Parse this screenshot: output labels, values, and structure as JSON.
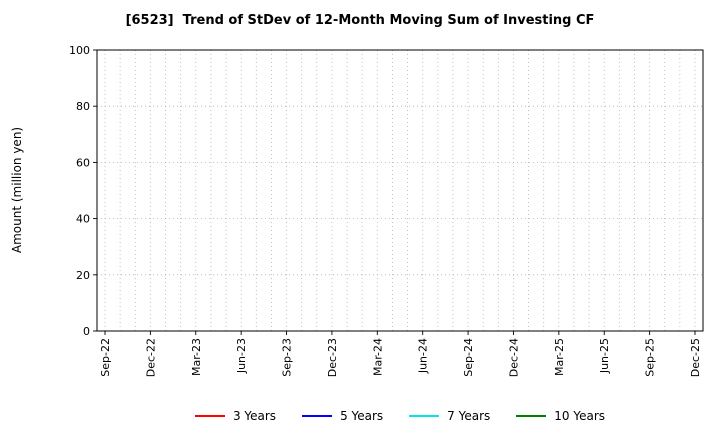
{
  "chart_data": {
    "type": "line",
    "title": "[6523]  Trend of StDev of 12-Month Moving Sum of Investing CF",
    "ylabel": "Amount (million yen)",
    "xlabel": "",
    "ylim": [
      0,
      100
    ],
    "yticks": [
      0,
      20,
      40,
      60,
      80,
      100
    ],
    "x_tick_labels": [
      "Sep-22",
      "Dec-22",
      "Mar-23",
      "Jun-23",
      "Sep-23",
      "Dec-23",
      "Mar-24",
      "Jun-24",
      "Sep-24",
      "Dec-24",
      "Mar-25",
      "Jun-25",
      "Sep-25",
      "Dec-25"
    ],
    "months_per_tick": 3,
    "grid": true,
    "grid_style": "dotted",
    "grid_color": "#b0b0b0",
    "frame_color": "#000000",
    "legend_position": "bottom",
    "series": [
      {
        "name": "3 Years",
        "color": "#ff0000",
        "values": []
      },
      {
        "name": "5 Years",
        "color": "#0000ff",
        "values": []
      },
      {
        "name": "7 Years",
        "color": "#00e5ee",
        "values": []
      },
      {
        "name": "10 Years",
        "color": "#008000",
        "values": []
      }
    ]
  }
}
